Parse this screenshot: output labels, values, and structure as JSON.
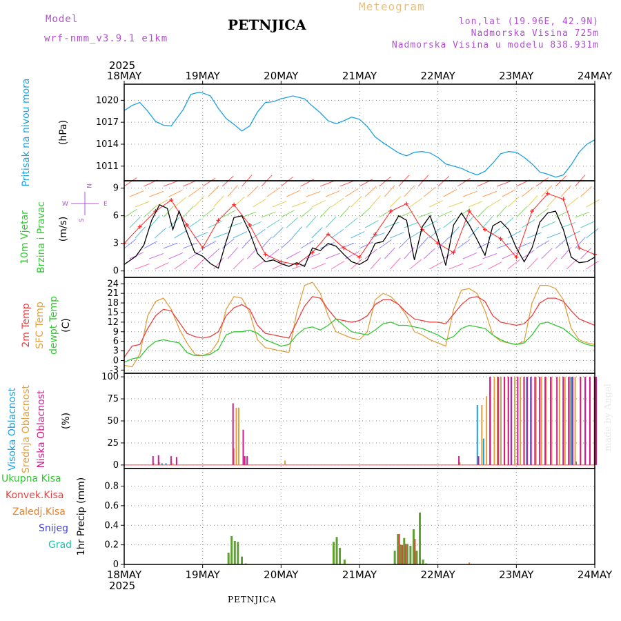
{
  "header": {
    "model_label": "Model",
    "model_value": "wrf-nmm_v3.9.1  e1km",
    "station": "PETNJICA",
    "product": "Meteogram",
    "lonlat": "lon,lat (19.96E, 42.9N)",
    "altitude": "Nadmorska Visina 725m",
    "model_altitude": "Nadmorska Visina u modelu 838.931m",
    "credit": "made by Angel",
    "footer_station": "PETNJICA"
  },
  "colors": {
    "pressure": "#1ca0e0",
    "t2m": "#e84040",
    "sfc": "#e0a040",
    "dew": "#30c830",
    "high_cloud": "#1ca0e0",
    "mid_cloud": "#e0a040",
    "low_cloud": "#d01c8a",
    "total_precip": "#30c830",
    "conv_precip": "#e84040",
    "frz_precip": "#f08020",
    "snow": "#4040e0",
    "hail": "#20c0b0",
    "wind_speed": "#000000",
    "gust": "#ff2020",
    "cloud_axis": "#ff4040"
  },
  "chart_data": [
    {
      "type": "line",
      "title": "",
      "panel_label_lines": [
        "Pritisak na nivou mora"
      ],
      "unit_label": "(hPa)",
      "x_top_year": "2025",
      "x_ticks": [
        "18MAY",
        "19MAY",
        "20MAY",
        "21MAY",
        "22MAY",
        "23MAY",
        "24MAY"
      ],
      "y_ticks": [
        1011,
        1014,
        1017,
        1020
      ],
      "ylim": [
        1009,
        1022.2
      ],
      "series": [
        {
          "name": "Pritisak na nivou mora",
          "x": [
            0,
            0.1,
            0.2,
            0.3,
            0.4,
            0.5,
            0.6,
            0.75,
            0.85,
            0.95,
            1.0,
            1.1,
            1.2,
            1.3,
            1.4,
            1.5,
            1.6,
            1.7,
            1.8,
            1.9,
            2.0,
            2.15,
            2.3,
            2.4,
            2.5,
            2.6,
            2.7,
            2.8,
            2.9,
            3.0,
            3.1,
            3.2,
            3.3,
            3.4,
            3.5,
            3.6,
            3.7,
            3.8,
            3.9,
            4.0,
            4.1,
            4.2,
            4.3,
            4.4,
            4.5,
            4.6,
            4.7,
            4.8,
            4.9,
            5.0,
            5.1,
            5.2,
            5.3,
            5.4,
            5.5,
            5.6,
            5.7,
            5.8,
            5.9,
            6.0
          ],
          "values": [
            1018.6,
            1019.3,
            1019.7,
            1018.5,
            1017.1,
            1016.6,
            1016.5,
            1018.7,
            1020.8,
            1021.1,
            1021.0,
            1020.6,
            1018.9,
            1017.5,
            1016.7,
            1015.8,
            1016.5,
            1018.4,
            1019.7,
            1019.8,
            1020.2,
            1020.6,
            1020.2,
            1019.2,
            1018.3,
            1017.2,
            1016.8,
            1017.2,
            1017.7,
            1017.4,
            1016.4,
            1015.0,
            1014.2,
            1013.5,
            1012.8,
            1012.4,
            1012.9,
            1013.0,
            1012.8,
            1012.2,
            1011.3,
            1011.0,
            1010.7,
            1010.2,
            1009.8,
            1010.3,
            1011.4,
            1012.7,
            1013.0,
            1012.9,
            1012.2,
            1011.3,
            1010.2,
            1009.9,
            1009.5,
            1009.8,
            1011.2,
            1012.9,
            1014.0,
            1014.6
          ]
        }
      ]
    },
    {
      "type": "line",
      "title": "",
      "panel_label_lines": [
        "10m Vjetar",
        "Brzina i Pravac"
      ],
      "unit_label": "(m/s)",
      "compass": {
        "n": "N",
        "s": "S",
        "w": "W",
        "e": "E"
      },
      "y_ticks": [
        0,
        3,
        6,
        9
      ],
      "ylim": [
        -0.7,
        9.8
      ],
      "series": [
        {
          "name": "speed",
          "x": [
            0,
            0.15,
            0.25,
            0.35,
            0.45,
            0.55,
            0.62,
            0.7,
            0.8,
            0.9,
            1.0,
            1.1,
            1.2,
            1.3,
            1.4,
            1.5,
            1.6,
            1.7,
            1.8,
            1.9,
            2.0,
            2.1,
            2.2,
            2.3,
            2.4,
            2.5,
            2.6,
            2.7,
            2.8,
            2.9,
            3.0,
            3.1,
            3.2,
            3.3,
            3.4,
            3.5,
            3.6,
            3.7,
            3.8,
            3.9,
            4.0,
            4.1,
            4.2,
            4.3,
            4.4,
            4.5,
            4.6,
            4.7,
            4.8,
            4.9,
            5.0,
            5.1,
            5.2,
            5.3,
            5.4,
            5.5,
            5.6,
            5.7,
            5.8,
            5.9,
            6.0
          ],
          "values": [
            0.7,
            1.6,
            2.8,
            5.5,
            7.2,
            6.8,
            4.5,
            6.5,
            4.2,
            2.0,
            1.6,
            0.8,
            0.3,
            3.2,
            5.8,
            6.0,
            4.2,
            1.9,
            1.0,
            1.2,
            0.8,
            0.5,
            0.9,
            0.5,
            2.5,
            2.2,
            3.0,
            2.7,
            1.8,
            1.0,
            0.7,
            1.2,
            3.0,
            3.2,
            4.5,
            6.0,
            5.5,
            1.2,
            4.8,
            6.0,
            3.5,
            0.6,
            5.0,
            6.3,
            5.0,
            3.4,
            1.7,
            4.9,
            5.4,
            4.5,
            2.5,
            1.0,
            2.5,
            5.3,
            6.3,
            6.5,
            4.5,
            1.5,
            0.9,
            1.0,
            1.5
          ]
        },
        {
          "name": "gust",
          "x": [
            0,
            0.2,
            0.4,
            0.6,
            0.8,
            1.0,
            1.2,
            1.4,
            1.6,
            1.8,
            2.0,
            2.2,
            2.4,
            2.6,
            2.8,
            3.0,
            3.2,
            3.4,
            3.6,
            3.8,
            4.0,
            4.2,
            4.4,
            4.6,
            4.8,
            5.0,
            5.2,
            5.4,
            5.6,
            5.8,
            6.0
          ],
          "values": [
            3.0,
            4.8,
            6.5,
            7.7,
            5.0,
            2.5,
            5.5,
            7.2,
            5.0,
            1.8,
            1.0,
            0.7,
            2.0,
            4.0,
            2.5,
            1.5,
            4.0,
            6.5,
            7.3,
            4.5,
            3.0,
            2.0,
            6.5,
            4.5,
            3.5,
            1.5,
            6.5,
            8.4,
            7.8,
            2.5,
            1.8
          ]
        }
      ]
    },
    {
      "type": "line",
      "title": "",
      "panel_label_lines": [
        "2m Temp",
        "SFC Temp",
        "dewpt Temp"
      ],
      "unit_label": "(C)",
      "y_ticks": [
        -3,
        0,
        3,
        6,
        9,
        12,
        15,
        18,
        21,
        24
      ],
      "ylim": [
        -4,
        26
      ],
      "series": [
        {
          "name": "2m Temp",
          "x": [
            0,
            0.1,
            0.2,
            0.3,
            0.4,
            0.5,
            0.6,
            0.7,
            0.8,
            0.9,
            1.0,
            1.1,
            1.2,
            1.3,
            1.4,
            1.5,
            1.6,
            1.7,
            1.8,
            1.9,
            2.0,
            2.1,
            2.2,
            2.3,
            2.4,
            2.5,
            2.6,
            2.7,
            2.8,
            2.9,
            3.0,
            3.1,
            3.2,
            3.3,
            3.4,
            3.5,
            3.6,
            3.7,
            3.8,
            3.9,
            4.0,
            4.1,
            4.2,
            4.3,
            4.4,
            4.5,
            4.6,
            4.7,
            4.8,
            4.9,
            5.0,
            5.1,
            5.2,
            5.3,
            5.4,
            5.5,
            5.6,
            5.7,
            5.8,
            5.9,
            6.0
          ],
          "values": [
            1.0,
            4.5,
            5.0,
            10.0,
            14.0,
            16.0,
            15.5,
            12.0,
            8.5,
            7.5,
            7.0,
            7.5,
            9.0,
            14.0,
            16.5,
            17.5,
            16.0,
            11.0,
            8.5,
            8.0,
            7.5,
            7.0,
            12.0,
            17.0,
            20.0,
            19.5,
            16.0,
            13.0,
            12.5,
            12.0,
            12.5,
            14.0,
            17.5,
            19.0,
            19.0,
            17.5,
            15.0,
            13.0,
            12.5,
            12.0,
            12.0,
            11.5,
            14.5,
            17.5,
            19.5,
            20.0,
            18.5,
            14.0,
            12.0,
            11.5,
            11.0,
            11.5,
            14.0,
            18.0,
            19.5,
            19.5,
            18.5,
            15.5,
            13.0,
            12.0,
            11.0
          ]
        },
        {
          "name": "SFC Temp",
          "x": [
            0,
            0.1,
            0.2,
            0.3,
            0.4,
            0.5,
            0.6,
            0.7,
            0.8,
            0.9,
            1.0,
            1.1,
            1.2,
            1.3,
            1.4,
            1.5,
            1.6,
            1.7,
            1.8,
            1.9,
            2.0,
            2.1,
            2.2,
            2.3,
            2.4,
            2.5,
            2.6,
            2.7,
            2.8,
            2.9,
            3.0,
            3.1,
            3.2,
            3.3,
            3.4,
            3.5,
            3.6,
            3.7,
            3.8,
            3.9,
            4.0,
            4.1,
            4.2,
            4.3,
            4.4,
            4.5,
            4.6,
            4.7,
            4.8,
            4.9,
            5.0,
            5.1,
            5.2,
            5.3,
            5.4,
            5.5,
            5.6,
            5.7,
            5.8,
            5.9,
            6.0
          ],
          "values": [
            -1.5,
            -2.0,
            2.0,
            14.0,
            18.5,
            19.5,
            16.0,
            10.0,
            5.5,
            2.0,
            1.5,
            2.5,
            6.0,
            16.0,
            20.0,
            19.5,
            15.0,
            6.5,
            4.0,
            3.5,
            3.0,
            2.5,
            15.0,
            23.5,
            24.5,
            21.0,
            14.0,
            9.0,
            8.0,
            7.0,
            6.5,
            9.0,
            19.0,
            21.0,
            20.0,
            17.5,
            14.0,
            9.0,
            8.0,
            6.5,
            5.5,
            4.5,
            16.0,
            22.0,
            22.5,
            21.0,
            15.5,
            8.0,
            6.0,
            5.5,
            5.0,
            6.0,
            18.0,
            23.5,
            23.5,
            22.5,
            19.0,
            10.0,
            6.5,
            5.5,
            5.0
          ]
        },
        {
          "name": "dewpt Temp",
          "x": [
            0,
            0.1,
            0.2,
            0.3,
            0.4,
            0.5,
            0.6,
            0.7,
            0.8,
            0.9,
            1.0,
            1.1,
            1.2,
            1.3,
            1.4,
            1.5,
            1.6,
            1.7,
            1.8,
            1.9,
            2.0,
            2.1,
            2.2,
            2.3,
            2.4,
            2.5,
            2.6,
            2.7,
            2.8,
            2.9,
            3.0,
            3.1,
            3.2,
            3.3,
            3.4,
            3.5,
            3.6,
            3.7,
            3.8,
            3.9,
            4.0,
            4.1,
            4.2,
            4.3,
            4.4,
            4.5,
            4.6,
            4.7,
            4.8,
            4.9,
            5.0,
            5.1,
            5.2,
            5.3,
            5.4,
            5.5,
            5.6,
            5.7,
            5.8,
            5.9,
            6.0
          ],
          "values": [
            -0.5,
            0.5,
            1.0,
            4.0,
            6.0,
            6.5,
            6.0,
            5.5,
            2.5,
            1.5,
            1.5,
            2.0,
            3.5,
            8.0,
            9.0,
            9.0,
            9.5,
            8.5,
            6.5,
            5.5,
            4.5,
            5.0,
            8.0,
            10.0,
            10.5,
            9.5,
            11.0,
            13.0,
            11.0,
            9.0,
            8.5,
            8.0,
            9.5,
            11.5,
            12.0,
            11.0,
            11.0,
            10.5,
            10.0,
            9.0,
            8.0,
            6.5,
            7.5,
            10.0,
            11.0,
            10.5,
            10.0,
            8.0,
            6.5,
            5.5,
            5.0,
            5.5,
            8.0,
            11.5,
            12.0,
            11.0,
            10.0,
            8.0,
            6.0,
            5.0,
            4.5
          ]
        }
      ]
    },
    {
      "type": "bar",
      "title": "",
      "panel_label_lines": [
        "Visoka Oblacnost",
        "Srednja Oblacnost",
        "Niska Oblacnost"
      ],
      "unit_label": "(%)",
      "y_ticks": [
        0,
        25,
        50,
        75,
        100
      ],
      "ylim": [
        -4,
        104
      ],
      "series": [
        {
          "name": "Visoka Oblacnost",
          "x": [
            0.5,
            0.55,
            4.52,
            4.6,
            4.68,
            4.82,
            4.95,
            5.15,
            5.2,
            5.7,
            5.72,
            5.78
          ],
          "values": [
            2,
            2,
            68,
            30,
            100,
            100,
            100,
            100,
            100,
            100,
            100,
            4
          ]
        },
        {
          "name": "Srednja Oblacnost",
          "x": [
            0.38,
            0.45,
            0.62,
            1.4,
            1.43,
            1.46,
            2.05,
            4.28,
            4.56,
            4.62,
            4.72,
            4.76,
            4.8,
            4.85,
            4.9,
            4.98,
            5.05,
            5.1,
            5.25,
            5.32,
            5.38,
            5.45,
            5.55,
            5.62,
            5.68,
            5.75,
            5.82,
            5.88,
            5.94,
            6.0
          ],
          "values": [
            2,
            3,
            2,
            19,
            65,
            65,
            5,
            3,
            68,
            78,
            100,
            100,
            100,
            100,
            100,
            100,
            100,
            100,
            100,
            100,
            100,
            100,
            100,
            100,
            100,
            100,
            100,
            100,
            100,
            100
          ]
        },
        {
          "name": "Niska Oblacnost",
          "x": [
            0.35,
            0.42,
            0.58,
            0.65,
            1.37,
            1.5,
            1.52,
            1.55,
            4.25,
            4.5,
            4.65,
            4.75,
            4.83,
            4.88,
            4.92,
            5.0,
            5.08,
            5.12,
            5.17,
            5.22,
            5.28,
            5.35,
            5.42,
            5.5,
            5.58,
            5.65,
            5.7,
            5.8,
            5.86,
            5.92,
            5.98,
            6.0
          ],
          "values": [
            10,
            11,
            10,
            9,
            70,
            40,
            10,
            10,
            10,
            10,
            100,
            100,
            100,
            100,
            100,
            100,
            100,
            100,
            100,
            100,
            100,
            100,
            100,
            100,
            100,
            100,
            100,
            100,
            100,
            100,
            100,
            100
          ]
        }
      ]
    },
    {
      "type": "bar",
      "title": "",
      "legend": [
        "Ukupna Kisa",
        "Konvek.Kisa",
        "Zaledj.Kisa",
        "Snijeg",
        "Grad"
      ],
      "unit_label": "1hr Precip (mm)",
      "x_bottom_year": "2025",
      "x_ticks": [
        "18MAY",
        "19MAY",
        "20MAY",
        "21MAY",
        "22MAY",
        "23MAY",
        "24MAY"
      ],
      "y_ticks": [
        0,
        0.2,
        0.4,
        0.6,
        0.8
      ],
      "ylim": [
        0,
        0.98
      ],
      "series": [
        {
          "name": "Ukupna Kisa",
          "x": [
            1.33,
            1.37,
            1.41,
            1.45,
            1.5,
            1.55,
            2.67,
            2.71,
            2.75,
            2.81,
            3.45,
            3.49,
            3.53,
            3.57,
            3.61,
            3.65,
            3.69,
            3.73,
            3.77,
            3.81,
            3.85
          ],
          "values": [
            0.12,
            0.29,
            0.24,
            0.23,
            0.08,
            0.01,
            0.23,
            0.28,
            0.17,
            0.05,
            0.14,
            0.31,
            0.2,
            0.27,
            0.21,
            0.19,
            0.36,
            0.14,
            0.53,
            0.05,
            0.01
          ]
        },
        {
          "name": "Konvek.Kisa",
          "x": [
            3.49,
            3.53,
            3.57,
            3.69
          ],
          "values": [
            0.31,
            0.2,
            0.21,
            0.26
          ]
        },
        {
          "name": "Zaledj.Kisa",
          "x": [
            4.4
          ],
          "values": [
            0.02
          ]
        }
      ]
    }
  ]
}
